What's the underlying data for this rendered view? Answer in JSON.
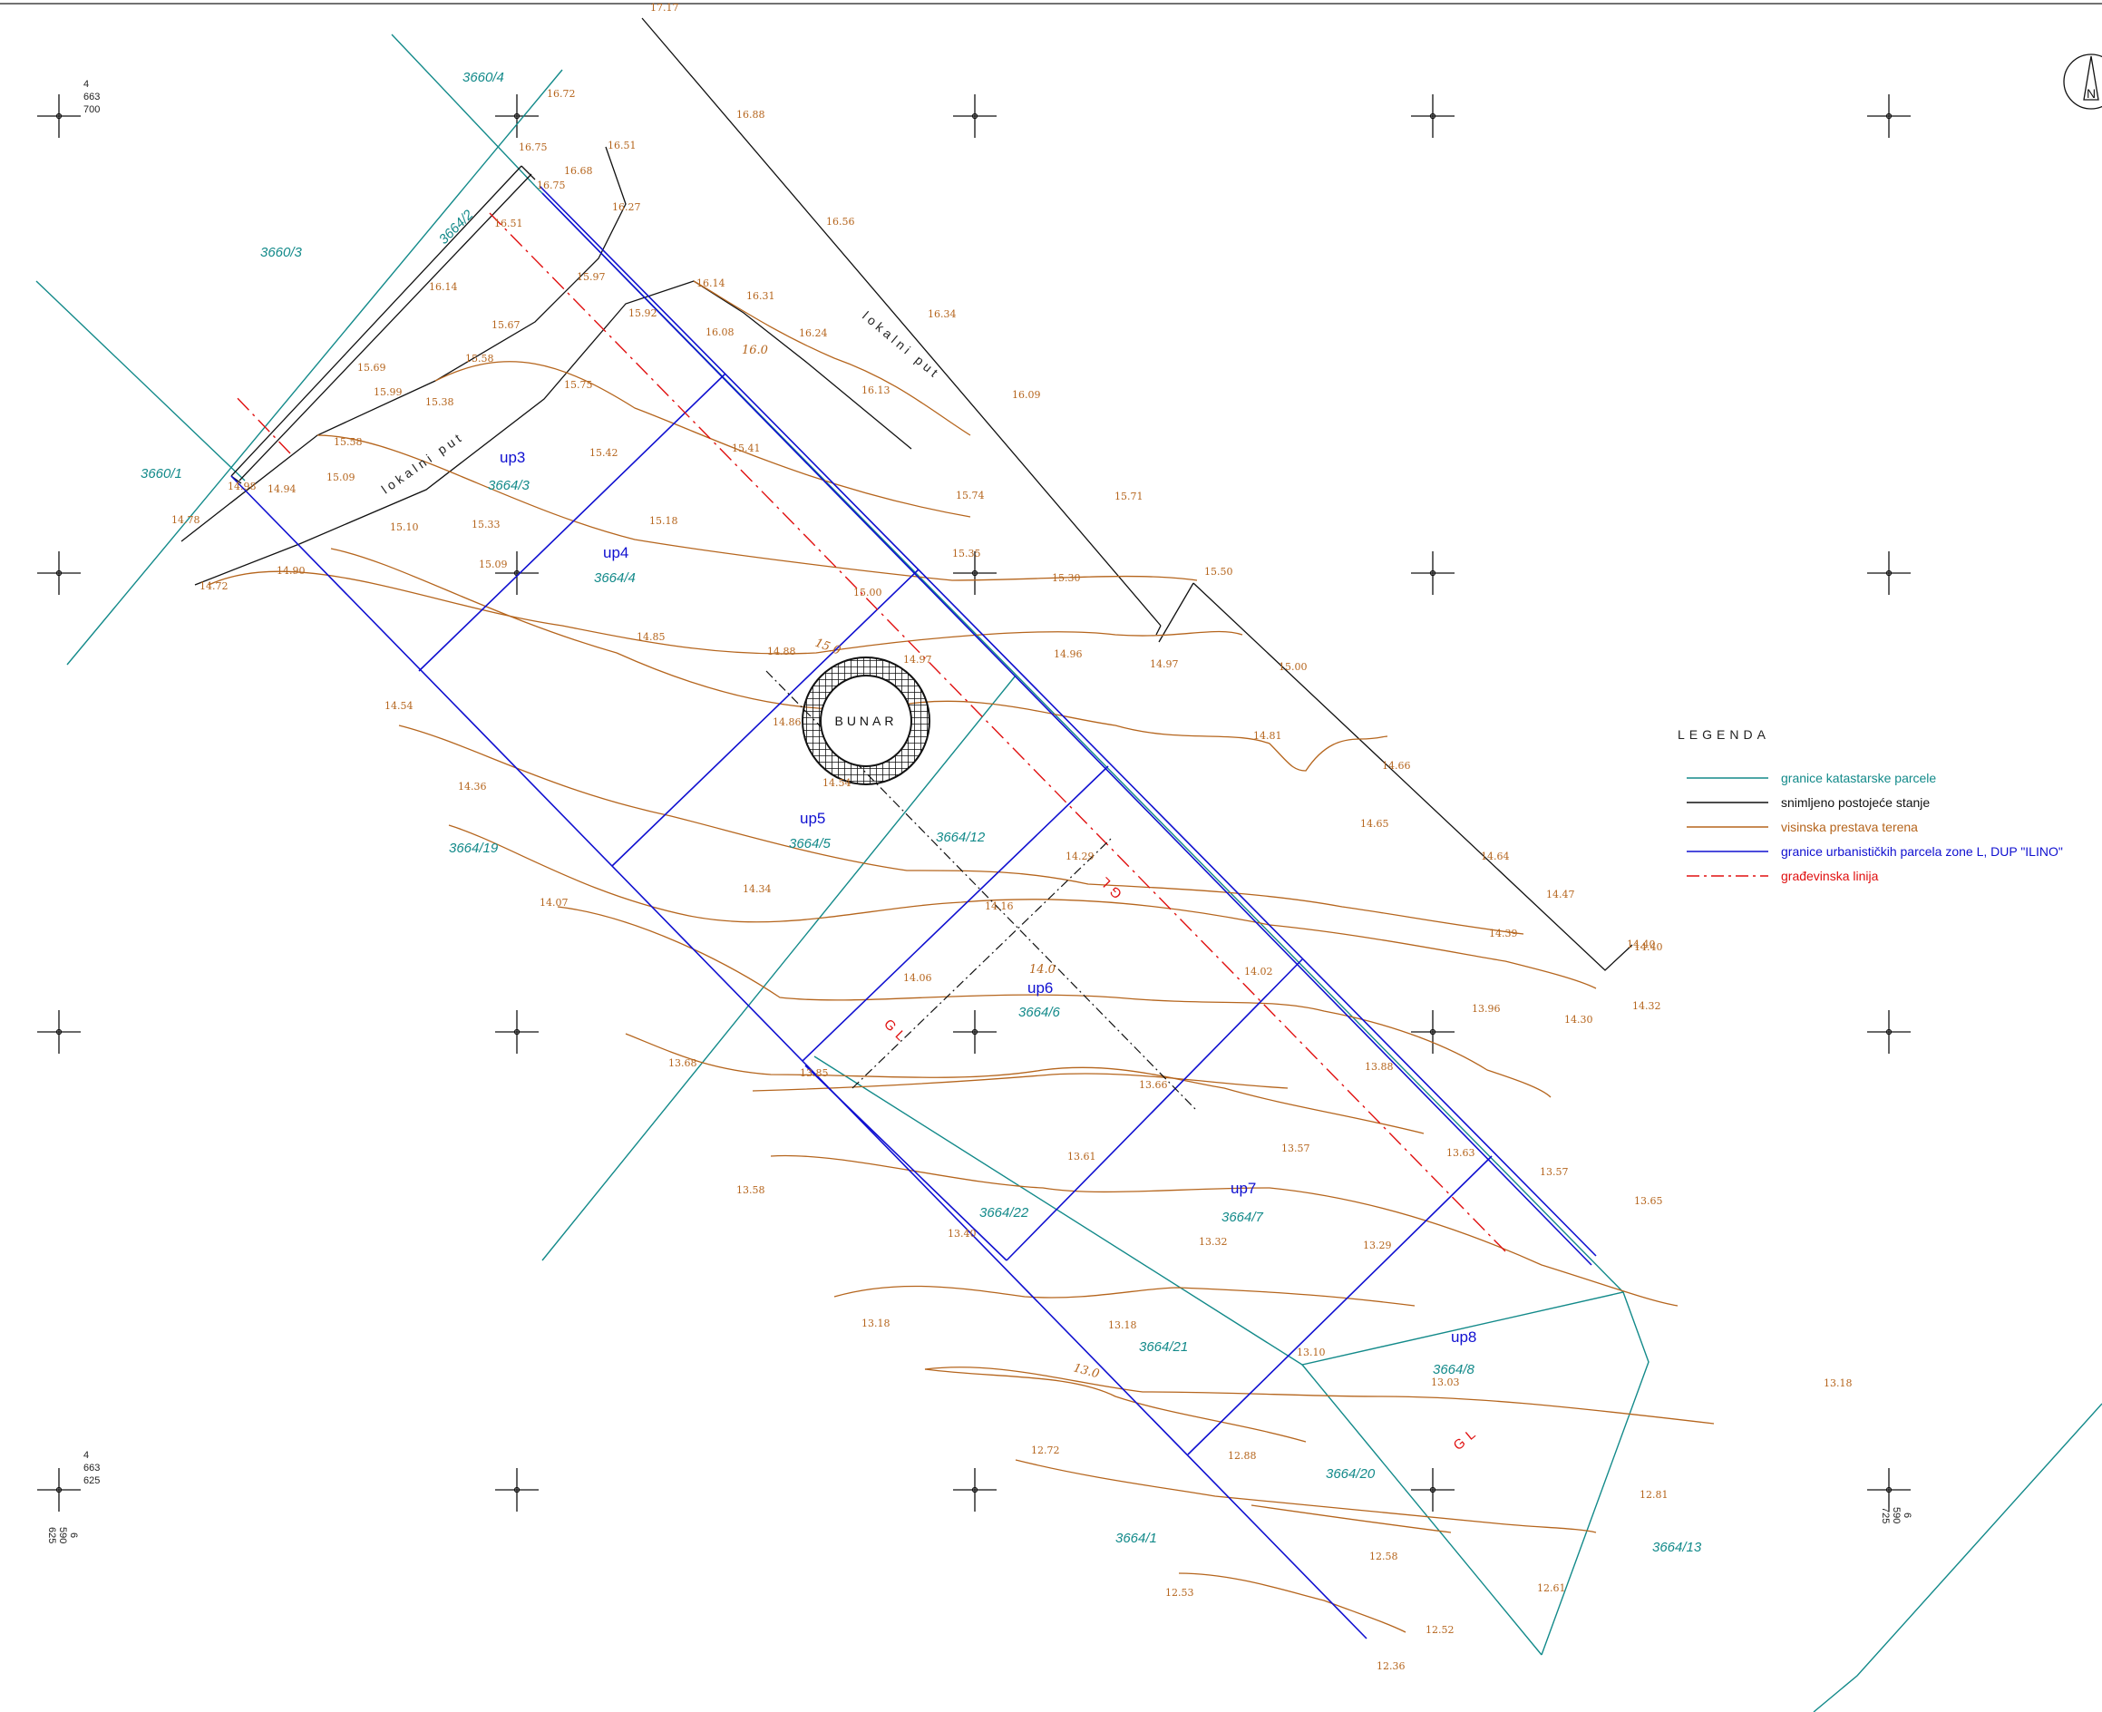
{
  "colors": {
    "cadastral": "#138a8a",
    "existing": "#111111",
    "terrain": "#b5651d",
    "urban": "#1010d0",
    "building_line": "#e01010"
  },
  "north_arrow": {
    "letter": "N"
  },
  "coords": {
    "top_left": [
      "4",
      "663",
      "700"
    ],
    "bottom_left": [
      "4",
      "663",
      "625"
    ],
    "bottom_left_x": [
      "6",
      "590",
      "625"
    ],
    "bottom_right_x": [
      "6",
      "590",
      "725"
    ]
  },
  "well_label": "BUNAR",
  "roads": [
    "lokalni put",
    "lokalni put"
  ],
  "building_line_labels": [
    "GL",
    "GL",
    "GL"
  ],
  "contour_labels": [
    "16.0",
    "15.0",
    "14.0",
    "13.0"
  ],
  "urban_parcels": [
    "up3",
    "up4",
    "up5",
    "up6",
    "up7",
    "up8"
  ],
  "cadastral_parcels": [
    "3660/4",
    "3664/2",
    "3660/3",
    "3660/1",
    "3664/3",
    "3664/4",
    "3664/5",
    "3664/12",
    "3664/19",
    "3664/6",
    "3664/22",
    "3664/7",
    "3664/21",
    "3664/8",
    "3664/20",
    "3664/1",
    "3664/13"
  ],
  "elevations": [
    "17.17",
    "16.88",
    "16.72",
    "16.75",
    "16.68",
    "16.51",
    "16.75",
    "16.27",
    "16.51",
    "16.56",
    "15.97",
    "16.14",
    "16.14",
    "16.31",
    "16.34",
    "15.92",
    "16.08",
    "16.24",
    "15.67",
    "15.58",
    "15.69",
    "15.75",
    "16.13",
    "16.09",
    "15.99",
    "15.38",
    "15.58",
    "15.42",
    "15.41",
    "15.74",
    "15.71",
    "15.09",
    "14.98",
    "14.94",
    "15.33",
    "15.18",
    "14.78",
    "15.10",
    "15.35",
    "15.30",
    "15.50",
    "14.72",
    "14.90",
    "15.09",
    "15.00",
    "14.85",
    "14.88",
    "14.97",
    "14.96",
    "14.97",
    "15.00",
    "14.54",
    "14.86",
    "14.81",
    "14.66",
    "14.36",
    "14.54",
    "14.65",
    "14.64",
    "14.34",
    "14.29",
    "14.47",
    "14.07",
    "14.16",
    "14.39",
    "14.40",
    "14.06",
    "14.02",
    "14.40",
    "14.32",
    "13.96",
    "14.30",
    "13.68",
    "13.85",
    "13.88",
    "13.66",
    "13.57",
    "13.61",
    "13.63",
    "13.57",
    "13.58",
    "13.40",
    "13.32",
    "13.29",
    "13.65",
    "13.18",
    "13.18",
    "13.10",
    "13.03",
    "13.18",
    "12.72",
    "12.88",
    "12.81",
    "12.58",
    "12.53",
    "12.61",
    "12.52",
    "12.36"
  ],
  "legend": {
    "title": "LEGENDA",
    "items": [
      {
        "label": "granice katastarske parcele",
        "color": "#138a8a",
        "style": "solid"
      },
      {
        "label": "snimljeno postojeće stanje",
        "color": "#111111",
        "style": "solid"
      },
      {
        "label": "visinska prestava terena",
        "color": "#b5651d",
        "style": "solid"
      },
      {
        "label": "granice urbanističkih parcela zone L, DUP \"ILINO\"",
        "color": "#1010d0",
        "style": "solid"
      },
      {
        "label": "građevinska linija",
        "color": "#e01010",
        "style": "dashdot"
      }
    ]
  }
}
